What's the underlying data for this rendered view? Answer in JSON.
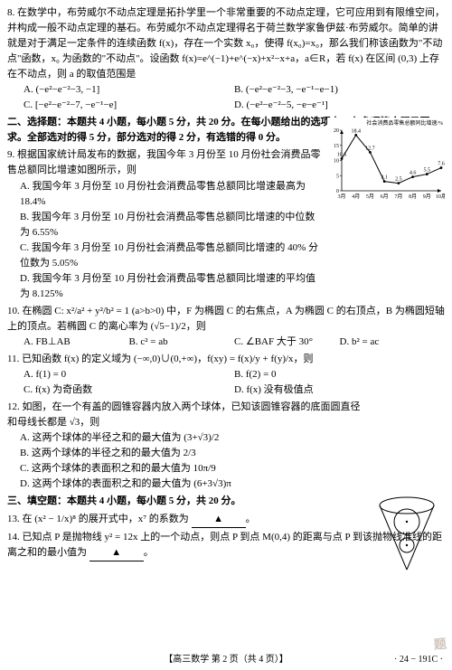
{
  "q8": {
    "text": "8. 在数学中，布劳威尔不动点定理是拓扑学里一个非常重要的不动点定理，它可应用到有限维空间，并构成一般不动点定理的基石。布劳威尔不动点定理得名于荷兰数学家鲁伊兹·布劳威尔。简单的讲就是对于满足一定条件的连续函数 f(x)，存在一个实数 x₀，使得 f(x₀)=x₀，那么我们称该函数为\"不动点\"函数，x₀ 为函数的\"不动点\"。设函数 f(x)=e^(−1)+e^(−x)+x²−x+a，a∈R，若 f(x) 在区间 (0,3) 上存在不动点，则 a 的取值范围是",
    "A": "A. (−e²−e⁻²−3, −1]",
    "B": "B. (−e²−e⁻²−3, −e⁻¹−e−1)",
    "C": "C. [−e²−e⁻²−7, −e⁻¹−e]",
    "D": "D. (−e²−e⁻²−5, −e−e⁻¹]"
  },
  "section2": "二、选择题：本题共 4 小题，每小题 5 分，共 20 分。在每小题给出的选项中，有多项符合题目要求。全部选对的得 5 分，部分选对的得 2 分，有选错的得 0 分。",
  "q9": {
    "text": "9. 根据国家统计局发布的数据，我国今年 3 月份至 10 月份社会消费品零售总额同比增速如图所示，则",
    "A": "A. 我国今年 3 月份至 10 月份社会消费品零售总额同比增速最高为 18.4%",
    "B": "B. 我国今年 3 月份至 10 月份社会消费品零售总额同比增速的中位数为 6.55%",
    "C": "C. 我国今年 3 月份至 10 月份社会消费品零售总额同比增速的 40% 分位数为 5.05%",
    "D": "D. 我国今年 3 月份至 10 月份社会消费品零售总额同比增速的平均值为 8.125%"
  },
  "chart": {
    "title": "社会消费品零售总额同比增速/%",
    "xlabels": [
      "3月",
      "4月",
      "5月",
      "6月",
      "7月",
      "8月",
      "9月",
      "10月"
    ],
    "values": [
      10.6,
      18.4,
      12.7,
      3.1,
      2.5,
      4.6,
      5.5,
      7.6
    ],
    "value_labels": [
      "10.6",
      "18.4",
      "12.7",
      "3.1",
      "2.5",
      "4.6",
      "5.5",
      "7.6"
    ],
    "ylim": [
      0,
      20
    ],
    "line_color": "#000000",
    "point_color": "#000000",
    "bg": "#ffffff",
    "axis_color": "#000000",
    "title_fontsize": 6,
    "label_fontsize": 6,
    "tick_fontsize": 6
  },
  "q10": {
    "text": "10. 在椭圆 C: x²/a² + y²/b² = 1 (a>b>0) 中，F 为椭圆 C 的右焦点，A 为椭圆 C 的右顶点，B 为椭圆短轴上的顶点。若椭圆 C 的离心率为 (√5−1)/2，则",
    "A": "A. FB⊥AB",
    "B": "B. c² = ab",
    "C": "C. ∠BAF 大于 30°",
    "D": "D. b² = ac"
  },
  "q11": {
    "text": "11. 已知函数 f(x) 的定义域为 (−∞,0)∪(0,+∞)，f(xy) = f(x)/y + f(y)/x，则",
    "A": "A. f(1) = 0",
    "B": "B. f(2) = 0",
    "C": "C. f(x) 为奇函数",
    "D": "D. f(x) 没有极值点"
  },
  "q12": {
    "text": "12. 如图，在一个有盖的圆锥容器内放入两个球体，已知该圆锥容器的底面圆直径和母线长都是 √3，则",
    "A": "A. 这两个球体的半径之和的最大值为 (3+√3)/2",
    "B": "B. 这两个球体的半径之和的最大值为 2/3",
    "C": "C. 这两个球体的表面积之和的最大值为 10π/9",
    "D": "D. 这两个球体的表面积之和的最大值为 (6+3√3)π"
  },
  "cone": {
    "stroke": "#000000",
    "fill": "#ffffff"
  },
  "section3": "三、填空题：本题共 4 小题，每小题 5 分，共 20 分。",
  "q13": "13. 在 (x² − 1/x)⁸ 的展开式中，x⁷ 的系数为",
  "q14": "14. 已知点 P 是抛物线 y² = 12x 上的一个动点，则点 P 到点 M(0,4) 的距离与点 P 到该抛物线准线的距离之和的最小值为",
  "blank": "▲",
  "footer_center": "【高三数学 第 2 页（共 4 页）】",
  "footer_right": "· 24 − 191C ·",
  "watermark": "题"
}
